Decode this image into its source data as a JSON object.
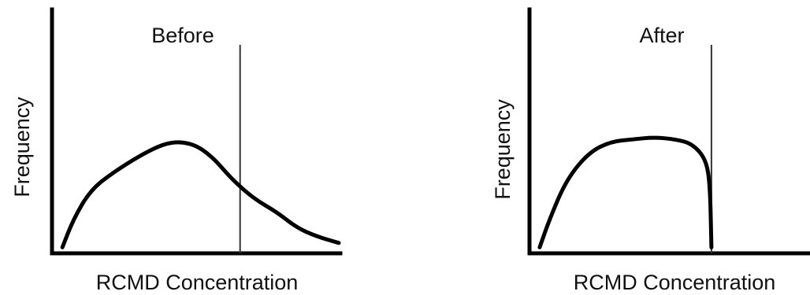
{
  "chart_data": [
    {
      "type": "line",
      "title": "Before",
      "xlabel": "RCMD Concentration",
      "ylabel": "Frequency",
      "xlim": [
        0,
        100
      ],
      "ylim": [
        0,
        100
      ],
      "cutoff_x": 65,
      "series": [
        {
          "x": [
            2,
            6,
            12,
            20,
            30,
            38,
            44,
            50,
            56,
            62,
            70,
            78,
            85,
            92,
            100
          ],
          "values": [
            2,
            15,
            28,
            36,
            44,
            49,
            50,
            48,
            42,
            33,
            24,
            18,
            11,
            7,
            4
          ]
        }
      ]
    },
    {
      "type": "line",
      "title": "After",
      "xlabel": "RCMD Concentration",
      "ylabel": "Frequency",
      "xlim": [
        0,
        100
      ],
      "ylim": [
        0,
        100
      ],
      "cutoff_x": 65,
      "series": [
        {
          "x": [
            2,
            6,
            12,
            20,
            28,
            36,
            44,
            52,
            58,
            63,
            64.5,
            65
          ],
          "values": [
            2,
            16,
            33,
            45,
            50,
            51,
            52,
            51,
            49,
            42,
            30,
            2
          ]
        }
      ]
    }
  ]
}
